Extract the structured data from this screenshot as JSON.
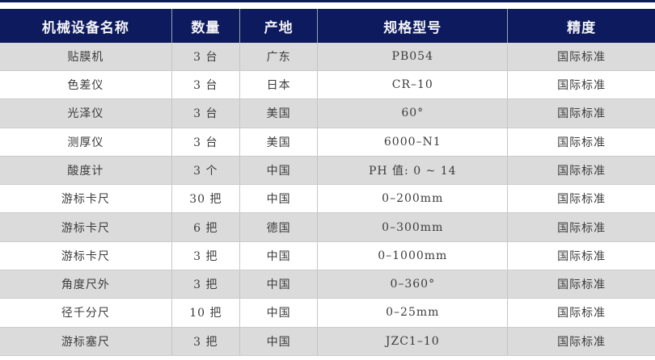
{
  "colors": {
    "header_bg": "#0d1b5e",
    "header_text": "#f2f2f5",
    "top_rule": "#0d1b5e",
    "row_shaded_bg": "#dbdbdb",
    "row_plain_bg": "#ffffff",
    "cell_border": "#c6c6c6",
    "body_text": "#3c3c3c"
  },
  "table": {
    "columns": [
      {
        "label": "机械设备名称"
      },
      {
        "label": "数量"
      },
      {
        "label": "产地"
      },
      {
        "label": "规格型号"
      },
      {
        "label": "精度"
      }
    ],
    "rows": [
      {
        "cells": [
          "贴膜机",
          "3 台",
          "广东",
          "PB054",
          "国际标准"
        ]
      },
      {
        "cells": [
          "色差仪",
          "3 台",
          "日本",
          "CR–10",
          "国际标准"
        ]
      },
      {
        "cells": [
          "光泽仪",
          "3 台",
          "美国",
          "60°",
          "国际标准"
        ]
      },
      {
        "cells": [
          "测厚仪",
          "3 台",
          "美国",
          "6000–N1",
          "国际标准"
        ]
      },
      {
        "cells": [
          "酸度计",
          "3 个",
          "中国",
          "PH 值: 0 ~ 14",
          "国际标准"
        ]
      },
      {
        "cells": [
          "游标卡尺",
          "30 把",
          "中国",
          "0–200mm",
          "国际标准"
        ]
      },
      {
        "cells": [
          "游标卡尺",
          "6 把",
          "德国",
          "0–300mm",
          "国际标准"
        ]
      },
      {
        "cells": [
          "游标卡尺",
          "3 把",
          "中国",
          "0–1000mm",
          "国际标准"
        ]
      },
      {
        "cells": [
          "角度尺外",
          "3 把",
          "中国",
          "0–360°",
          "国际标准"
        ]
      },
      {
        "cells": [
          "径千分尺",
          "10 把",
          "中国",
          "0–25mm",
          "国际标准"
        ]
      },
      {
        "cells": [
          "游标塞尺",
          "3 把",
          "中国",
          "JZC1–10",
          "国际标准"
        ]
      }
    ]
  }
}
